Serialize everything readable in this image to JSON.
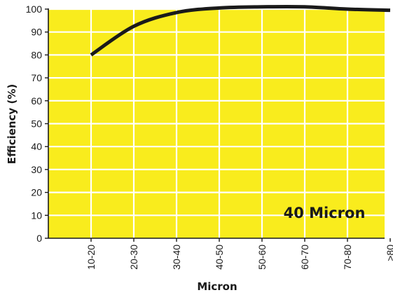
{
  "chart_data": {
    "type": "line",
    "title": "",
    "xlabel": "Micron",
    "ylabel": "Efficiency (%)",
    "categories": [
      "10-20",
      "20-30",
      "30-40",
      "40-50",
      "50-60",
      "60-70",
      "70-80",
      ">80"
    ],
    "ylim": [
      0,
      100
    ],
    "yticks": [
      0,
      10,
      20,
      30,
      40,
      50,
      60,
      70,
      80,
      90,
      100
    ],
    "grid": true,
    "series": [
      {
        "values": [
          80,
          92.5,
          98.5,
          100.5,
          101,
          101,
          100,
          99.5
        ]
      }
    ],
    "annotation": "40 Micron",
    "colors": {
      "background": "#f9ec1d",
      "grid": "#ffffff",
      "line": "#1a1a1a",
      "axis": "#1a1a1a"
    }
  }
}
